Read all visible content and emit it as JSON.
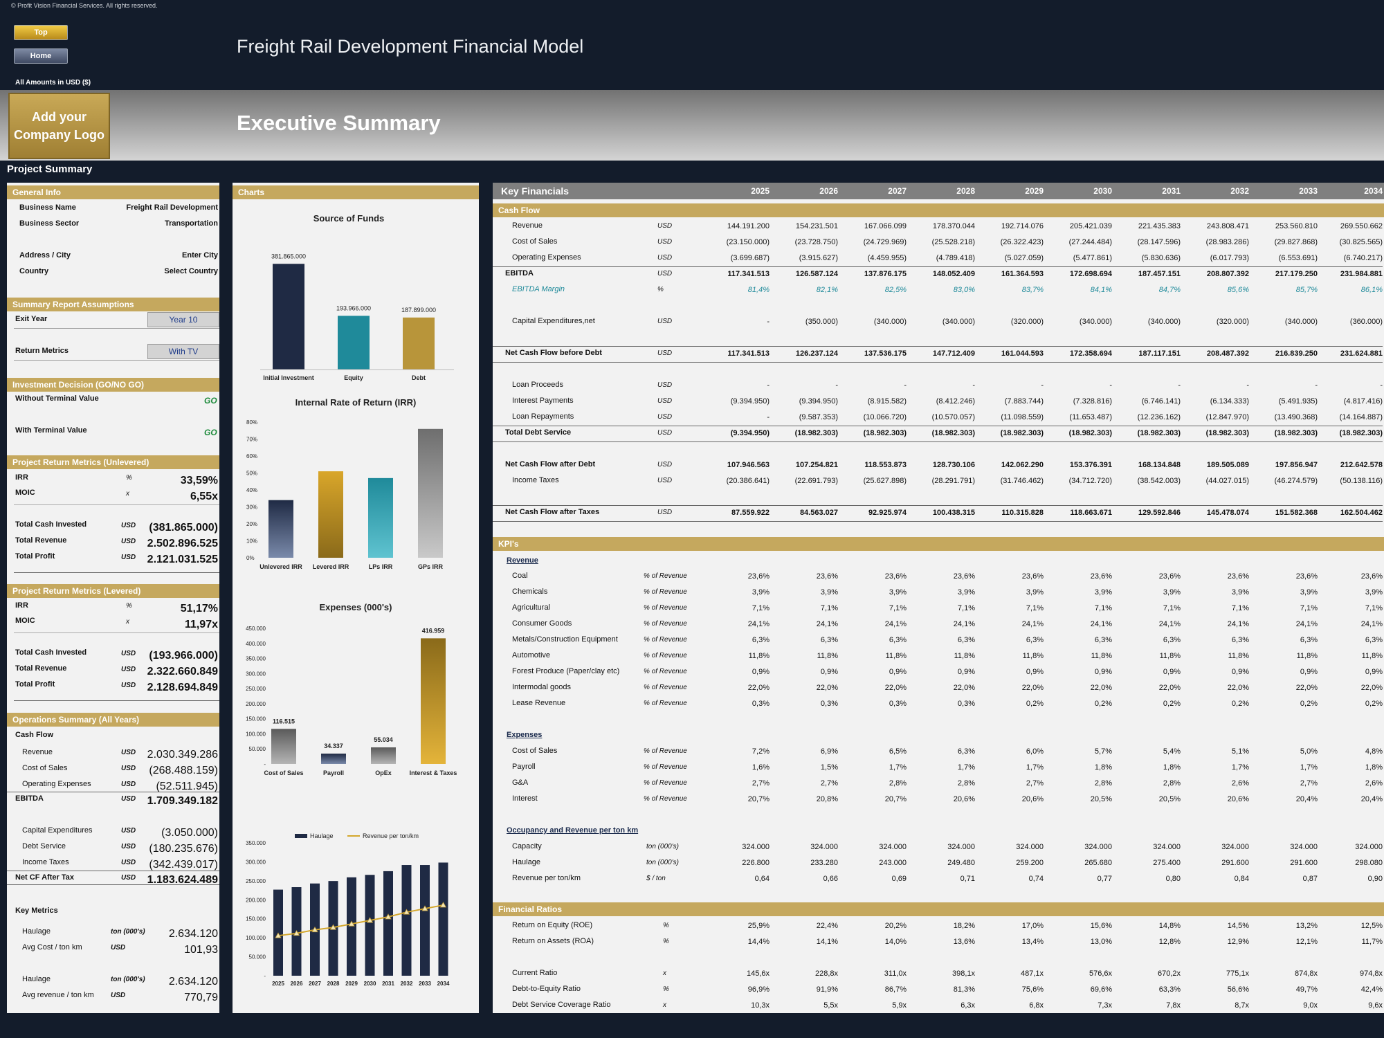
{
  "copyright": "© Profit Vision Financial Services. All rights reserved.",
  "nav": {
    "top": "Top",
    "home": "Home"
  },
  "title": "Freight Rail Development Financial Model",
  "amounts": "All Amounts in  USD ($)",
  "logo": {
    "line1": "Add your",
    "line2": "Company Logo"
  },
  "page_title": "Executive Summary",
  "project_summary": "Project Summary",
  "colors": {
    "navy": "#1f2a44",
    "teal": "#1f8a9a",
    "gold": "#b8953a",
    "gray": "#7a7a7a",
    "band": "#c5a85e"
  },
  "general": {
    "header": "General Info",
    "rows": [
      {
        "label": "Business Name",
        "value": "Freight Rail Development"
      },
      {
        "label": "Business Sector",
        "value": "Transportation"
      },
      {
        "label": "Address / City",
        "value": "Enter City"
      },
      {
        "label": "Country",
        "value": "Select Country"
      }
    ]
  },
  "assumptions": {
    "header": "Summary  Report Assumptions",
    "exit_label": "Exit Year",
    "exit_value": "Year 10",
    "return_label": "Return Metrics",
    "return_value": "With TV"
  },
  "decision": {
    "header": "Investment Decision (GO/NO GO)",
    "rows": [
      {
        "label": "Without Terminal Value",
        "value": "GO"
      },
      {
        "label": "With Terminal Value",
        "value": "GO"
      }
    ]
  },
  "unlevered": {
    "header": "Project Return Metrics (Unlevered)",
    "irr": {
      "label": "IRR",
      "unit": "%",
      "value": "33,59%"
    },
    "moic": {
      "label": "MOIC",
      "unit": "x",
      "value": "6,55x"
    },
    "rows": [
      {
        "label": "Total Cash Invested",
        "unit": "USD",
        "value": "(381.865.000)"
      },
      {
        "label": "Total Revenue",
        "unit": "USD",
        "value": "2.502.896.525"
      },
      {
        "label": "Total Profit",
        "unit": "USD",
        "value": "2.121.031.525"
      }
    ]
  },
  "levered": {
    "header": "Project Return Metrics (Levered)",
    "irr": {
      "label": "IRR",
      "unit": "%",
      "value": "51,17%"
    },
    "moic": {
      "label": "MOIC",
      "unit": "x",
      "value": "11,97x"
    },
    "rows": [
      {
        "label": "Total Cash Invested",
        "unit": "USD",
        "value": "(193.966.000)"
      },
      {
        "label": "Total Revenue",
        "unit": "USD",
        "value": "2.322.660.849"
      },
      {
        "label": "Total Profit",
        "unit": "USD",
        "value": "2.128.694.849"
      }
    ]
  },
  "operations": {
    "header": "Operations Summary (All Years)",
    "cashflow_label": "Cash Flow",
    "rows1": [
      {
        "label": "Revenue",
        "unit": "USD",
        "value": "2.030.349.286"
      },
      {
        "label": "Cost of Sales",
        "unit": "USD",
        "value": "(268.488.159)"
      },
      {
        "label": "Operating Expenses",
        "unit": "USD",
        "value": "(52.511.945)"
      }
    ],
    "ebitda": {
      "label": "EBITDA",
      "unit": "USD",
      "value": "1.709.349.182"
    },
    "rows2": [
      {
        "label": "Capital Expenditures",
        "unit": "USD",
        "value": "(3.050.000)"
      },
      {
        "label": "Debt Service",
        "unit": "USD",
        "value": "(180.235.676)"
      },
      {
        "label": "Income Taxes",
        "unit": "USD",
        "value": "(342.439.017)"
      }
    ],
    "netcf": {
      "label": "Net CF After Tax",
      "unit": "USD",
      "value": "1.183.624.489"
    },
    "keymetrics_label": "Key Metrics",
    "km": [
      {
        "label": "Haulage",
        "unit": "ton (000's)",
        "value": "2.634.120"
      },
      {
        "label": "Avg Cost / ton km",
        "unit": "USD",
        "value": "101,93"
      },
      {
        "label": "Haulage",
        "unit": "ton (000's)",
        "value": "2.634.120"
      },
      {
        "label": "Avg revenue / ton km",
        "unit": "USD",
        "value": "770,79"
      }
    ]
  },
  "charts_header": "Charts",
  "chart_data": [
    {
      "type": "bar",
      "title": "Source of Funds",
      "categories": [
        "Initial Investment",
        "Equity",
        "Debt"
      ],
      "values": [
        381865000,
        193966000,
        187899000
      ],
      "labels": [
        "381.865.000",
        "193.966.000",
        "187.899.000"
      ],
      "ylim": [
        0,
        400000000
      ]
    },
    {
      "type": "bar",
      "title": "Internal Rate of Return (IRR)",
      "categories": [
        "Unlevered IRR",
        "Levered IRR",
        "LPs IRR",
        "GPs IRR"
      ],
      "values": [
        34,
        51,
        47,
        76
      ],
      "yticks": [
        "0%",
        "10%",
        "20%",
        "30%",
        "40%",
        "50%",
        "60%",
        "70%",
        "80%"
      ],
      "ylim": [
        0,
        80
      ]
    },
    {
      "type": "bar",
      "title": "Expenses (000's)",
      "categories": [
        "Cost of Sales",
        "Payroll",
        "OpEx",
        "Interest & Taxes"
      ],
      "values": [
        116515,
        34337,
        55034,
        416959
      ],
      "labels": [
        "116.515",
        "34.337",
        "55.034",
        "416.959"
      ],
      "yticks": [
        "-",
        "50.000",
        "100.000",
        "150.000",
        "200.000",
        "250.000",
        "300.000",
        "350.000",
        "400.000",
        "450.000"
      ],
      "ylim": [
        0,
        450000
      ]
    },
    {
      "type": "bar",
      "title": "",
      "categories": [
        "2025",
        "2026",
        "2027",
        "2028",
        "2029",
        "2030",
        "2031",
        "2032",
        "2033",
        "2034"
      ],
      "series": [
        {
          "name": "Haulage",
          "values": [
            226800,
            233280,
            243000,
            249480,
            259200,
            265680,
            275400,
            291600,
            291600,
            298080
          ]
        },
        {
          "name": "Revenue per ton/km",
          "values": [
            0.64,
            0.66,
            0.69,
            0.71,
            0.74,
            0.77,
            0.8,
            0.84,
            0.87,
            0.9
          ]
        }
      ],
      "yticks": [
        "-",
        "50.000",
        "100.000",
        "150.000",
        "200.000",
        "250.000",
        "300.000",
        "350.000"
      ],
      "ylim": [
        0,
        350000
      ]
    }
  ],
  "kf": {
    "header": "Key Financials",
    "years": [
      "2025",
      "2026",
      "2027",
      "2028",
      "2029",
      "2030",
      "2031",
      "2032",
      "2033",
      "2034"
    ],
    "cashflow_header": "Cash Flow",
    "kpi_header": "KPI's",
    "ratios_header": "Financial Ratios",
    "sub_revenue": "Revenue",
    "sub_expenses": "Expenses",
    "sub_occupancy": "Occupancy and Revenue per ton km",
    "cashflow": [
      {
        "label": "Revenue",
        "unit": "USD",
        "vals": [
          "144.191.200",
          "154.231.501",
          "167.066.099",
          "178.370.044",
          "192.714.076",
          "205.421.039",
          "221.435.383",
          "243.808.471",
          "253.560.810",
          "269.550.662"
        ]
      },
      {
        "label": "Cost of Sales",
        "unit": "USD",
        "vals": [
          "(23.150.000)",
          "(23.728.750)",
          "(24.729.969)",
          "(25.528.218)",
          "(26.322.423)",
          "(27.244.484)",
          "(28.147.596)",
          "(28.983.286)",
          "(29.827.868)",
          "(30.825.565)"
        ]
      },
      {
        "label": "Operating Expenses",
        "unit": "USD",
        "vals": [
          "(3.699.687)",
          "(3.915.627)",
          "(4.459.955)",
          "(4.789.418)",
          "(5.027.059)",
          "(5.477.861)",
          "(5.830.636)",
          "(6.017.793)",
          "(6.553.691)",
          "(6.740.217)"
        ]
      },
      {
        "label": "EBITDA",
        "unit": "USD",
        "vals": [
          "117.341.513",
          "126.587.124",
          "137.876.175",
          "148.052.409",
          "161.364.593",
          "172.698.694",
          "187.457.151",
          "208.807.392",
          "217.179.250",
          "231.984.881"
        ]
      },
      {
        "label": "EBITDA Margin",
        "unit": "%",
        "vals": [
          "81,4%",
          "82,1%",
          "82,5%",
          "83,0%",
          "83,7%",
          "84,1%",
          "84,7%",
          "85,6%",
          "85,7%",
          "86,1%"
        ]
      },
      {
        "label": "Capital Expenditures,net",
        "unit": "USD",
        "vals": [
          "-",
          "(350.000)",
          "(340.000)",
          "(340.000)",
          "(320.000)",
          "(340.000)",
          "(340.000)",
          "(320.000)",
          "(340.000)",
          "(360.000)"
        ]
      },
      {
        "label": "Net Cash Flow before Debt",
        "unit": "USD",
        "vals": [
          "117.341.513",
          "126.237.124",
          "137.536.175",
          "147.712.409",
          "161.044.593",
          "172.358.694",
          "187.117.151",
          "208.487.392",
          "216.839.250",
          "231.624.881"
        ]
      },
      {
        "label": "Loan Proceeds",
        "unit": "USD",
        "vals": [
          "-",
          "-",
          "-",
          "-",
          "-",
          "-",
          "-",
          "-",
          "-",
          "-"
        ]
      },
      {
        "label": "Interest Payments",
        "unit": "USD",
        "vals": [
          "(9.394.950)",
          "(9.394.950)",
          "(8.915.582)",
          "(8.412.246)",
          "(7.883.744)",
          "(7.328.816)",
          "(6.746.141)",
          "(6.134.333)",
          "(5.491.935)",
          "(4.817.416)"
        ]
      },
      {
        "label": "Loan Repayments",
        "unit": "USD",
        "vals": [
          "-",
          "(9.587.353)",
          "(10.066.720)",
          "(10.570.057)",
          "(11.098.559)",
          "(11.653.487)",
          "(12.236.162)",
          "(12.847.970)",
          "(13.490.368)",
          "(14.164.887)"
        ]
      },
      {
        "label": "Total Debt Service",
        "unit": "USD",
        "vals": [
          "(9.394.950)",
          "(18.982.303)",
          "(18.982.303)",
          "(18.982.303)",
          "(18.982.303)",
          "(18.982.303)",
          "(18.982.303)",
          "(18.982.303)",
          "(18.982.303)",
          "(18.982.303)"
        ]
      },
      {
        "label": "Net Cash Flow after Debt",
        "unit": "USD",
        "vals": [
          "107.946.563",
          "107.254.821",
          "118.553.873",
          "128.730.106",
          "142.062.290",
          "153.376.391",
          "168.134.848",
          "189.505.089",
          "197.856.947",
          "212.642.578"
        ]
      },
      {
        "label": "Income Taxes",
        "unit": "USD",
        "vals": [
          "(20.386.641)",
          "(22.691.793)",
          "(25.627.898)",
          "(28.291.791)",
          "(31.746.462)",
          "(34.712.720)",
          "(38.542.003)",
          "(44.027.015)",
          "(46.274.579)",
          "(50.138.116)"
        ]
      },
      {
        "label": "Net Cash Flow after Taxes",
        "unit": "USD",
        "vals": [
          "87.559.922",
          "84.563.027",
          "92.925.974",
          "100.438.315",
          "110.315.828",
          "118.663.671",
          "129.592.846",
          "145.478.074",
          "151.582.368",
          "162.504.462"
        ]
      }
    ],
    "revenue": [
      {
        "label": "Coal",
        "unit": "% of Revenue",
        "vals": [
          "23,6%",
          "23,6%",
          "23,6%",
          "23,6%",
          "23,6%",
          "23,6%",
          "23,6%",
          "23,6%",
          "23,6%",
          "23,6%"
        ]
      },
      {
        "label": "Chemicals",
        "unit": "% of Revenue",
        "vals": [
          "3,9%",
          "3,9%",
          "3,9%",
          "3,9%",
          "3,9%",
          "3,9%",
          "3,9%",
          "3,9%",
          "3,9%",
          "3,9%"
        ]
      },
      {
        "label": "Agricultural",
        "unit": "% of Revenue",
        "vals": [
          "7,1%",
          "7,1%",
          "7,1%",
          "7,1%",
          "7,1%",
          "7,1%",
          "7,1%",
          "7,1%",
          "7,1%",
          "7,1%"
        ]
      },
      {
        "label": "Consumer Goods",
        "unit": "% of Revenue",
        "vals": [
          "24,1%",
          "24,1%",
          "24,1%",
          "24,1%",
          "24,1%",
          "24,1%",
          "24,1%",
          "24,1%",
          "24,1%",
          "24,1%"
        ]
      },
      {
        "label": "Metals/Construction Equipment",
        "unit": "% of Revenue",
        "vals": [
          "6,3%",
          "6,3%",
          "6,3%",
          "6,3%",
          "6,3%",
          "6,3%",
          "6,3%",
          "6,3%",
          "6,3%",
          "6,3%"
        ]
      },
      {
        "label": "Automotive",
        "unit": "% of Revenue",
        "vals": [
          "11,8%",
          "11,8%",
          "11,8%",
          "11,8%",
          "11,8%",
          "11,8%",
          "11,8%",
          "11,8%",
          "11,8%",
          "11,8%"
        ]
      },
      {
        "label": "Forest Produce (Paper/clay etc)",
        "unit": "% of Revenue",
        "vals": [
          "0,9%",
          "0,9%",
          "0,9%",
          "0,9%",
          "0,9%",
          "0,9%",
          "0,9%",
          "0,9%",
          "0,9%",
          "0,9%"
        ]
      },
      {
        "label": "Intermodal goods",
        "unit": "% of Revenue",
        "vals": [
          "22,0%",
          "22,0%",
          "22,0%",
          "22,0%",
          "22,0%",
          "22,0%",
          "22,0%",
          "22,0%",
          "22,0%",
          "22,0%"
        ]
      },
      {
        "label": "Lease Revenue",
        "unit": "% of Revenue",
        "vals": [
          "0,3%",
          "0,3%",
          "0,3%",
          "0,3%",
          "0,2%",
          "0,2%",
          "0,2%",
          "0,2%",
          "0,2%",
          "0,2%"
        ]
      }
    ],
    "expenses": [
      {
        "label": "Cost of Sales",
        "unit": "% of Revenue",
        "vals": [
          "7,2%",
          "6,9%",
          "6,5%",
          "6,3%",
          "6,0%",
          "5,7%",
          "5,4%",
          "5,1%",
          "5,0%",
          "4,8%"
        ]
      },
      {
        "label": "Payroll",
        "unit": "% of Revenue",
        "vals": [
          "1,6%",
          "1,5%",
          "1,7%",
          "1,7%",
          "1,7%",
          "1,8%",
          "1,8%",
          "1,7%",
          "1,7%",
          "1,8%"
        ]
      },
      {
        "label": "G&A",
        "unit": "% of Revenue",
        "vals": [
          "2,7%",
          "2,7%",
          "2,8%",
          "2,8%",
          "2,7%",
          "2,8%",
          "2,8%",
          "2,6%",
          "2,7%",
          "2,6%"
        ]
      },
      {
        "label": "Interest",
        "unit": "% of Revenue",
        "vals": [
          "20,7%",
          "20,8%",
          "20,7%",
          "20,6%",
          "20,6%",
          "20,5%",
          "20,5%",
          "20,6%",
          "20,4%",
          "20,4%"
        ]
      }
    ],
    "occupancy": [
      {
        "label": "Capacity",
        "unit": "ton (000's)",
        "vals": [
          "324.000",
          "324.000",
          "324.000",
          "324.000",
          "324.000",
          "324.000",
          "324.000",
          "324.000",
          "324.000",
          "324.000"
        ]
      },
      {
        "label": "Haulage",
        "unit": "ton (000's)",
        "vals": [
          "226.800",
          "233.280",
          "243.000",
          "249.480",
          "259.200",
          "265.680",
          "275.400",
          "291.600",
          "291.600",
          "298.080"
        ]
      },
      {
        "label": "Revenue per ton/km",
        "unit": "$ / ton",
        "vals": [
          "0,64",
          "0,66",
          "0,69",
          "0,71",
          "0,74",
          "0,77",
          "0,80",
          "0,84",
          "0,87",
          "0,90"
        ]
      }
    ],
    "ratios": [
      {
        "label": "Return on Equity (ROE)",
        "unit": "%",
        "vals": [
          "25,9%",
          "22,4%",
          "20,2%",
          "18,2%",
          "17,0%",
          "15,6%",
          "14,8%",
          "14,5%",
          "13,2%",
          "12,5%"
        ]
      },
      {
        "label": "Return on Assets (ROA)",
        "unit": "%",
        "vals": [
          "14,4%",
          "14,1%",
          "14,0%",
          "13,6%",
          "13,4%",
          "13,0%",
          "12,8%",
          "12,9%",
          "12,1%",
          "11,7%"
        ]
      },
      {
        "label": "Current Ratio",
        "unit": "x",
        "vals": [
          "145,6x",
          "228,8x",
          "311,0x",
          "398,1x",
          "487,1x",
          "576,6x",
          "670,2x",
          "775,1x",
          "874,8x",
          "974,8x"
        ]
      },
      {
        "label": "Debt-to-Equity Ratio",
        "unit": "%",
        "vals": [
          "96,9%",
          "91,9%",
          "86,7%",
          "81,3%",
          "75,6%",
          "69,6%",
          "63,3%",
          "56,6%",
          "49,7%",
          "42,4%"
        ]
      },
      {
        "label": "Debt Service Coverage Ratio",
        "unit": "x",
        "vals": [
          "10,3x",
          "5,5x",
          "5,9x",
          "6,3x",
          "6,8x",
          "7,3x",
          "7,8x",
          "8,7x",
          "9,0x",
          "9,6x"
        ]
      }
    ]
  }
}
